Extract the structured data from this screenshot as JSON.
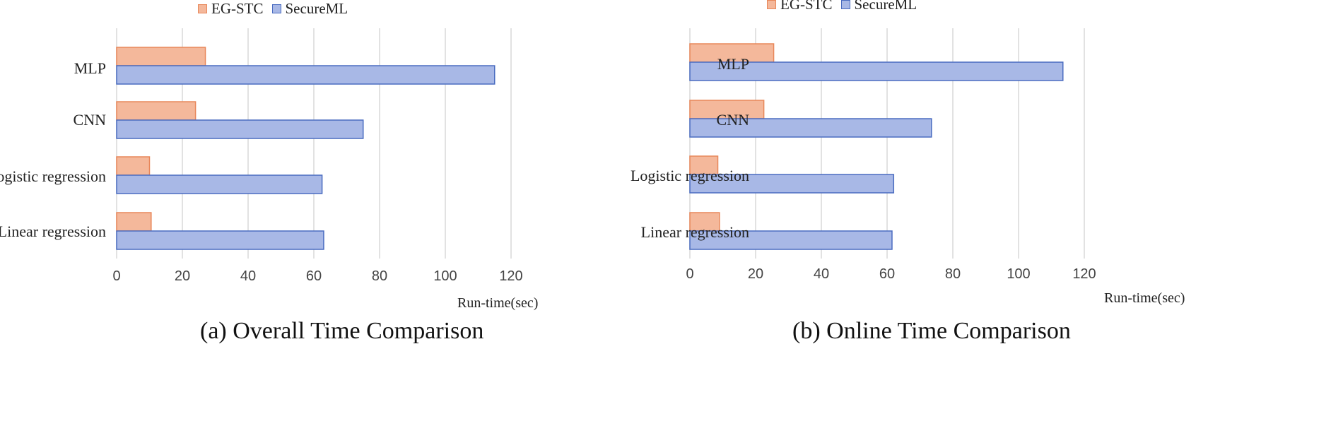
{
  "chart_data": [
    {
      "type": "bar",
      "orientation": "horizontal",
      "categories": [
        "MLP",
        "CNN",
        "Logistic regression",
        "Linear regression"
      ],
      "series": [
        {
          "name": "EG-STC",
          "values": [
            27,
            24,
            10,
            10.5
          ]
        },
        {
          "name": "SecureML",
          "values": [
            115,
            75,
            62.5,
            63
          ]
        }
      ],
      "xlabel": "Run-time(sec)",
      "xlim": [
        0,
        120
      ],
      "xticks": [
        "0",
        "20",
        "40",
        "60",
        "80",
        "100",
        "120"
      ],
      "grid": true,
      "legend": "top",
      "caption": "(a)  Overall Time Comparison"
    },
    {
      "type": "bar",
      "orientation": "horizontal",
      "categories": [
        "MLP",
        "CNN",
        "Logistic regression",
        "Linear regression"
      ],
      "series": [
        {
          "name": "EG-STC",
          "values": [
            25.5,
            22.5,
            8.5,
            9
          ]
        },
        {
          "name": "SecureML",
          "values": [
            113.5,
            73.5,
            62,
            61.5
          ]
        }
      ],
      "xlabel": "Run-time(sec)",
      "xlim": [
        0,
        120
      ],
      "xticks": [
        "0",
        "20",
        "40",
        "60",
        "80",
        "100",
        "120"
      ],
      "grid": true,
      "legend": "top",
      "caption": "(b) Online Time Comparison"
    }
  ],
  "colors": {
    "eg_stc_fill": "#f4b89b",
    "eg_stc_stroke": "#e8875a",
    "secureml_fill": "#a8b8e6",
    "secureml_stroke": "#4a6cc0",
    "grid": "#d9d9d9"
  }
}
